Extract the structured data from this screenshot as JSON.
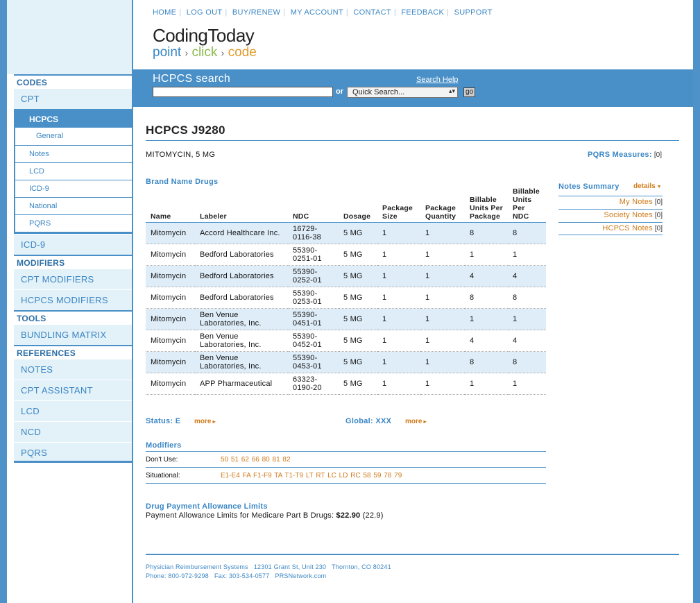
{
  "header": {
    "nav": [
      "HOME",
      "LOG OUT",
      "BUY/RENEW",
      "MY ACCOUNT",
      "CONTACT",
      "FEEDBACK",
      "SUPPORT"
    ],
    "logo_main": "CodingToday",
    "logo_point": "point",
    "logo_click": "click",
    "logo_code": "code"
  },
  "search": {
    "title": "HCPCS search",
    "help": "Search Help",
    "or": "or",
    "quick_search": "Quick Search...",
    "go": "go"
  },
  "sidebar": {
    "codes_heading": "CODES",
    "cpt": "CPT",
    "hcpcs": "HCPCS",
    "general": "General",
    "notes": "Notes",
    "lcd": "LCD",
    "icd9": "ICD-9",
    "national": "National",
    "pqrs": "PQRS",
    "icd9_top": "ICD-9",
    "modifiers_heading": "MODIFIERS",
    "cpt_modifiers": "CPT MODIFIERS",
    "hcpcs_modifiers": "HCPCS MODIFIERS",
    "tools_heading": "TOOLS",
    "bundling_matrix": "BUNDLING MATRIX",
    "references_heading": "REFERENCES",
    "ref_notes": "NOTES",
    "cpt_assistant": "CPT ASSISTANT",
    "ref_lcd": "LCD",
    "ncd": "NCD",
    "ref_pqrs": "PQRS"
  },
  "main": {
    "title": "HCPCS J9280",
    "description": "MITOMYCIN, 5 MG",
    "pqrs_label": "PQRS Measures:",
    "pqrs_count": "[0]",
    "brand_title": "Brand Name Drugs",
    "columns": [
      "Name",
      "Labeler",
      "NDC",
      "Dosage",
      "Package Size",
      "Package Quantity",
      "Billable Units Per Package",
      "Billable Units Per NDC"
    ],
    "rows": [
      [
        "Mitomycin",
        "Accord Healthcare Inc.",
        "16729-0116-38",
        "5 MG",
        "1",
        "1",
        "8",
        "8"
      ],
      [
        "Mitomycin",
        "Bedford Laboratories",
        "55390-0251-01",
        "5 MG",
        "1",
        "1",
        "1",
        "1"
      ],
      [
        "Mitomycin",
        "Bedford Laboratories",
        "55390-0252-01",
        "5 MG",
        "1",
        "1",
        "4",
        "4"
      ],
      [
        "Mitomycin",
        "Bedford Laboratories",
        "55390-0253-01",
        "5 MG",
        "1",
        "1",
        "8",
        "8"
      ],
      [
        "Mitomycin",
        "Ben Venue Laboratories, Inc.",
        "55390-0451-01",
        "5 MG",
        "1",
        "1",
        "1",
        "1"
      ],
      [
        "Mitomycin",
        "Ben Venue Laboratories, Inc.",
        "55390-0452-01",
        "5 MG",
        "1",
        "1",
        "4",
        "4"
      ],
      [
        "Mitomycin",
        "Ben Venue Laboratories, Inc.",
        "55390-0453-01",
        "5 MG",
        "1",
        "1",
        "8",
        "8"
      ],
      [
        "Mitomycin",
        "APP Pharmaceutical",
        "63323-0190-20",
        "5 MG",
        "1",
        "1",
        "1",
        "1"
      ]
    ],
    "status": "Status: E",
    "global": "Global: XXX",
    "more": "more",
    "modifiers_title": "Modifiers",
    "dont_use_label": "Don't Use:",
    "dont_use_codes": "50 51 62 66 80 81 82",
    "situational_label": "Situational:",
    "situational_codes": "E1-E4 FA F1-F9 TA T1-T9 LT RT LC LD RC 58 59 78 79",
    "dpal_title": "Drug Payment Allowance Limits",
    "dpal_text": "Payment Allowance Limits for Medicare Part B Drugs:",
    "dpal_amount": "$22.90",
    "dpal_raw": "(22.9)"
  },
  "notes_summary": {
    "title": "Notes Summary",
    "details": "details",
    "items": [
      {
        "label": "My Notes",
        "count": "[0]"
      },
      {
        "label": "Society Notes",
        "count": "[0]"
      },
      {
        "label": "HCPCS Notes",
        "count": "[0]"
      }
    ]
  },
  "footer": {
    "line1": "Physician Reimbursement Systems   12301 Grant St, Unit 230   Thornton, CO 80241",
    "line2": "Phone: 800-972-9298   Fax: 303-534-0577   PRSNetwork.com"
  },
  "colors": {
    "brand_blue": "#4a90c8",
    "link_blue": "#3a86c4",
    "accent_orange": "#d07a1a",
    "row_alt": "#deedf8"
  }
}
